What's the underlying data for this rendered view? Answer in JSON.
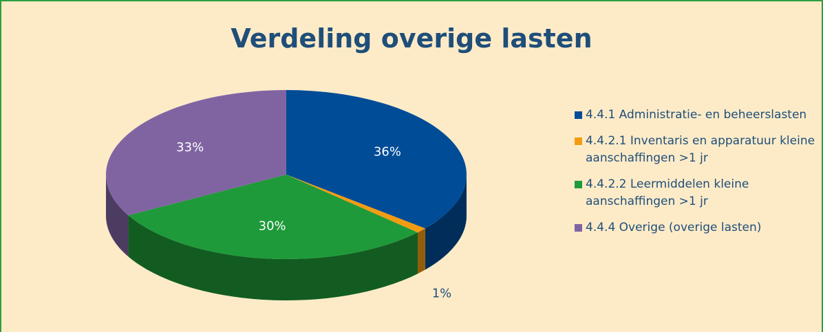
{
  "chart_data": {
    "type": "pie3d",
    "title": "Verdeling overige lasten",
    "categories": [
      "4.4.1 Administratie- en beheerslasten",
      "4.4.2.1 Inventaris en apparatuur kleine aanschaffingen >1 jr",
      "4.4.2.2 Leermiddelen kleine aanschaffingen >1 jr",
      "4.4.4 Overige (overige lasten)"
    ],
    "values": [
      36,
      1,
      30,
      33
    ],
    "value_labels": [
      "36%",
      "1%",
      "30%",
      "33%"
    ],
    "colors": [
      "#004c97",
      "#f39c12",
      "#1f9a3a",
      "#8064a2"
    ],
    "legend": "right"
  }
}
